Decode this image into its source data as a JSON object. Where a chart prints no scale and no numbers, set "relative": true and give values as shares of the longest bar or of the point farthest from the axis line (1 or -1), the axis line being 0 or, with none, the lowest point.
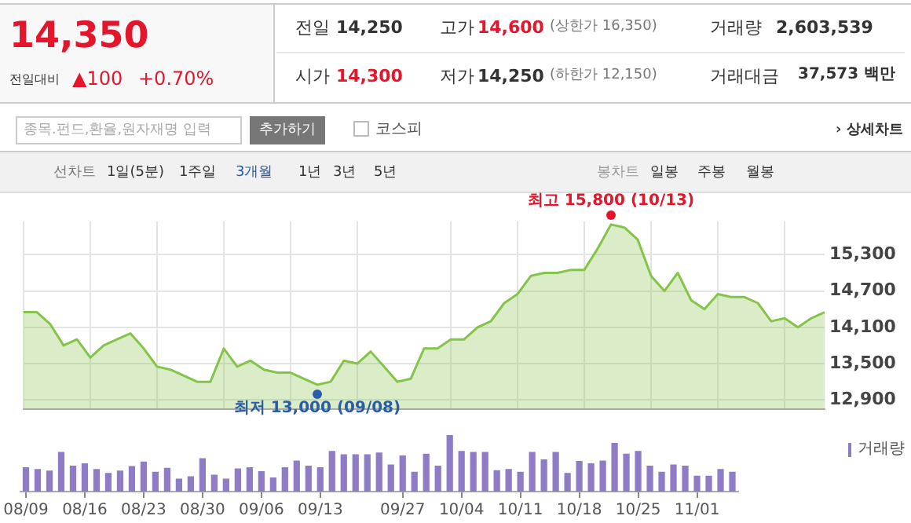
{
  "chart_data": [
    {
      "type": "other",
      "annotations": [
        "14,350",
        "전일대비",
        "▲100",
        "+0.70%",
        "전일",
        "14,250",
        "고가",
        "14,600",
        "(상한가 16,350)",
        "거래량",
        "2,603,539",
        "시가",
        "14,300",
        "저가",
        "14,250",
        "(하한가 12,150)",
        "거래대금",
        "37,573 백만",
        "종목.펀드,환율,원자재명 입력",
        "추가하기",
        "코스피",
        "› 상세차트",
        "선차트",
        "1일(5분)",
        "1주일",
        "3개월",
        "1년",
        "3년",
        "5년",
        "봉차트",
        "일봉",
        "주봉",
        "월봉"
      ]
    },
    {
      "type": "area",
      "categories": [
        null,
        null,
        null,
        null,
        null,
        null,
        null,
        null,
        null,
        null,
        null,
        null,
        null,
        null,
        null,
        null,
        null,
        null,
        null,
        null,
        null,
        null,
        null,
        null,
        null,
        null,
        null,
        null,
        null,
        null,
        null,
        null,
        null,
        null,
        null,
        null,
        null,
        null,
        null,
        null,
        null,
        null,
        null,
        null,
        null,
        null,
        null,
        null,
        null,
        null,
        null,
        null,
        null,
        null,
        null,
        null,
        null,
        null,
        null,
        null,
        null
      ],
      "series": [
        {
          "color": "#86c34a",
          "values": [
            14350,
            14350,
            14150,
            13800,
            13900,
            13600,
            13800,
            13900,
            14000,
            13750,
            13450,
            13400,
            13300,
            13200,
            13200,
            13750,
            13450,
            13550,
            13400,
            13350,
            13350,
            13250,
            13150,
            13200,
            13550,
            13500,
            13700,
            13450,
            13200,
            13250,
            13750,
            13750,
            13900,
            13900,
            14100,
            14200,
            14500,
            14650,
            14950,
            15000,
            15000,
            15050,
            15050,
            15400,
            15800,
            15750,
            15550,
            14950,
            14700,
            15000,
            14550,
            14400,
            14650,
            14600,
            14600,
            14500,
            14200,
            14250,
            14100,
            14250,
            14350
          ]
        }
      ],
      "ylim": [
        12750,
        15850
      ],
      "yticks": [
        {
          "value": 12900,
          "label": "12,900"
        },
        {
          "value": 13500,
          "label": "13,500"
        },
        {
          "value": 14100,
          "label": "14,100"
        },
        {
          "value": 14700,
          "label": "14,700"
        },
        {
          "value": 15300,
          "label": "15,300"
        }
      ],
      "grid": true,
      "tick_labels": "y",
      "annotations": [
        {
          "text": "최고 15,800 (10/13)",
          "y": 15800
        },
        {
          "text": "최저 13,000 (09/08)",
          "y": 13000
        }
      ]
    },
    {
      "type": "bar",
      "relative": true,
      "categories": [
        "08/09",
        null,
        null,
        null,
        null,
        "08/16",
        null,
        null,
        null,
        null,
        "08/23",
        null,
        null,
        null,
        null,
        "08/30",
        null,
        null,
        null,
        null,
        "09/06",
        null,
        null,
        null,
        null,
        "09/13",
        null,
        null,
        null,
        null,
        null,
        null,
        "09/27",
        null,
        null,
        null,
        null,
        "10/04",
        null,
        null,
        null,
        null,
        "10/11",
        null,
        null,
        null,
        null,
        "10/18",
        null,
        null,
        null,
        null,
        "10/25",
        null,
        null,
        null,
        null,
        "11/01",
        null,
        null,
        null
      ],
      "series": [
        {
          "name": "거래량",
          "color": "#8f7cc6",
          "values": [
            0.43,
            0.4,
            0.37,
            0.7,
            0.46,
            0.5,
            0.4,
            0.33,
            0.37,
            0.45,
            0.53,
            0.35,
            0.42,
            0.23,
            0.27,
            0.59,
            0.3,
            0.23,
            0.41,
            0.43,
            0.36,
            0.25,
            0.43,
            0.55,
            0.46,
            0.43,
            0.72,
            0.66,
            0.66,
            0.66,
            0.69,
            0.48,
            0.64,
            0.35,
            0.67,
            0.46,
            1,
            0.72,
            0.7,
            0.7,
            0.38,
            0.4,
            0.35,
            0.7,
            0.57,
            0.7,
            0.33,
            0.54,
            0.5,
            0.55,
            0.86,
            0.67,
            0.72,
            0.46,
            0.35,
            0.48,
            0.46,
            0.28,
            0.28,
            0.4,
            0.35
          ]
        }
      ],
      "legend": "top right",
      "tick_labels": "x"
    }
  ]
}
